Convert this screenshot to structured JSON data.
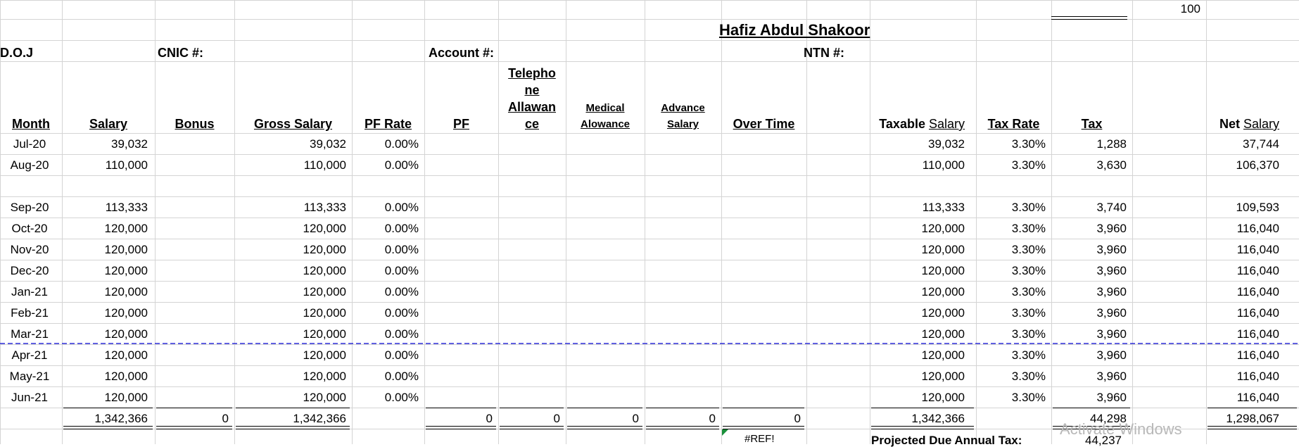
{
  "sheet": {
    "top_value": "100",
    "title": "Hafiz Abdul Shakoor",
    "labels": {
      "doj": "D.O.J",
      "cnic": "CNIC #:",
      "account": "Account #:",
      "ntn": "NTN #:"
    },
    "headers": {
      "month": "Month",
      "salary": "Salary",
      "bonus": "Bonus",
      "gross_salary": "Gross Salary",
      "pf_rate": "PF Rate",
      "pf": "PF",
      "telephone": [
        "Telepho",
        "ne",
        "Allawan",
        "ce"
      ],
      "medical": [
        "Medical",
        "Alowance"
      ],
      "advance": [
        "Advance",
        "Salary"
      ],
      "over_time": "Over Time",
      "taxable": "Taxable",
      "taxable_salary": "Salary",
      "tax_rate": "Tax Rate",
      "tax": "Tax",
      "net": "Net",
      "net_salary": "Salary"
    },
    "rows": [
      {
        "month": "Jul-20",
        "salary": "39,032",
        "gross": "39,032",
        "pf_rate": "0.00%",
        "taxable": "39,032",
        "tax_rate": "3.30%",
        "tax": "1,288",
        "net": "37,744"
      },
      {
        "month": "Aug-20",
        "salary": "110,000",
        "gross": "110,000",
        "pf_rate": "0.00%",
        "taxable": "110,000",
        "tax_rate": "3.30%",
        "tax": "3,630",
        "net": "106,370"
      },
      {
        "month": "",
        "salary": "",
        "gross": "",
        "pf_rate": "",
        "taxable": "",
        "tax_rate": "",
        "tax": "",
        "net": ""
      },
      {
        "month": "Sep-20",
        "salary": "113,333",
        "gross": "113,333",
        "pf_rate": "0.00%",
        "taxable": "113,333",
        "tax_rate": "3.30%",
        "tax": "3,740",
        "net": "109,593"
      },
      {
        "month": "Oct-20",
        "salary": "120,000",
        "gross": "120,000",
        "pf_rate": "0.00%",
        "taxable": "120,000",
        "tax_rate": "3.30%",
        "tax": "3,960",
        "net": "116,040"
      },
      {
        "month": "Nov-20",
        "salary": "120,000",
        "gross": "120,000",
        "pf_rate": "0.00%",
        "taxable": "120,000",
        "tax_rate": "3.30%",
        "tax": "3,960",
        "net": "116,040"
      },
      {
        "month": "Dec-20",
        "salary": "120,000",
        "gross": "120,000",
        "pf_rate": "0.00%",
        "taxable": "120,000",
        "tax_rate": "3.30%",
        "tax": "3,960",
        "net": "116,040"
      },
      {
        "month": "Jan-21",
        "salary": "120,000",
        "gross": "120,000",
        "pf_rate": "0.00%",
        "taxable": "120,000",
        "tax_rate": "3.30%",
        "tax": "3,960",
        "net": "116,040"
      },
      {
        "month": "Feb-21",
        "salary": "120,000",
        "gross": "120,000",
        "pf_rate": "0.00%",
        "taxable": "120,000",
        "tax_rate": "3.30%",
        "tax": "3,960",
        "net": "116,040"
      },
      {
        "month": "Mar-21",
        "salary": "120,000",
        "gross": "120,000",
        "pf_rate": "0.00%",
        "taxable": "120,000",
        "tax_rate": "3.30%",
        "tax": "3,960",
        "net": "116,040"
      },
      {
        "month": "Apr-21",
        "salary": "120,000",
        "gross": "120,000",
        "pf_rate": "0.00%",
        "taxable": "120,000",
        "tax_rate": "3.30%",
        "tax": "3,960",
        "net": "116,040"
      },
      {
        "month": "May-21",
        "salary": "120,000",
        "gross": "120,000",
        "pf_rate": "0.00%",
        "taxable": "120,000",
        "tax_rate": "3.30%",
        "tax": "3,960",
        "net": "116,040"
      },
      {
        "month": "Jun-21",
        "salary": "120,000",
        "gross": "120,000",
        "pf_rate": "0.00%",
        "taxable": "120,000",
        "tax_rate": "3.30%",
        "tax": "3,960",
        "net": "116,040"
      }
    ],
    "totals": {
      "salary": "1,342,366",
      "bonus": "0",
      "gross": "1,342,366",
      "pf": "0",
      "telephone": "0",
      "medical": "0",
      "advance": "0",
      "over_time": "0",
      "taxable": "1,342,366",
      "tax": "44,298",
      "net": "1,298,067"
    },
    "bottom": {
      "ref_error": "#REF!",
      "projected_label": "Projected Due Annual Tax:",
      "projected_value": "44,237"
    },
    "watermark": "Activate Windows"
  },
  "colors": {
    "gridline": "#d4d4d4",
    "page_break": "#2a2ad6",
    "error_flag": "#1a8f3a"
  }
}
